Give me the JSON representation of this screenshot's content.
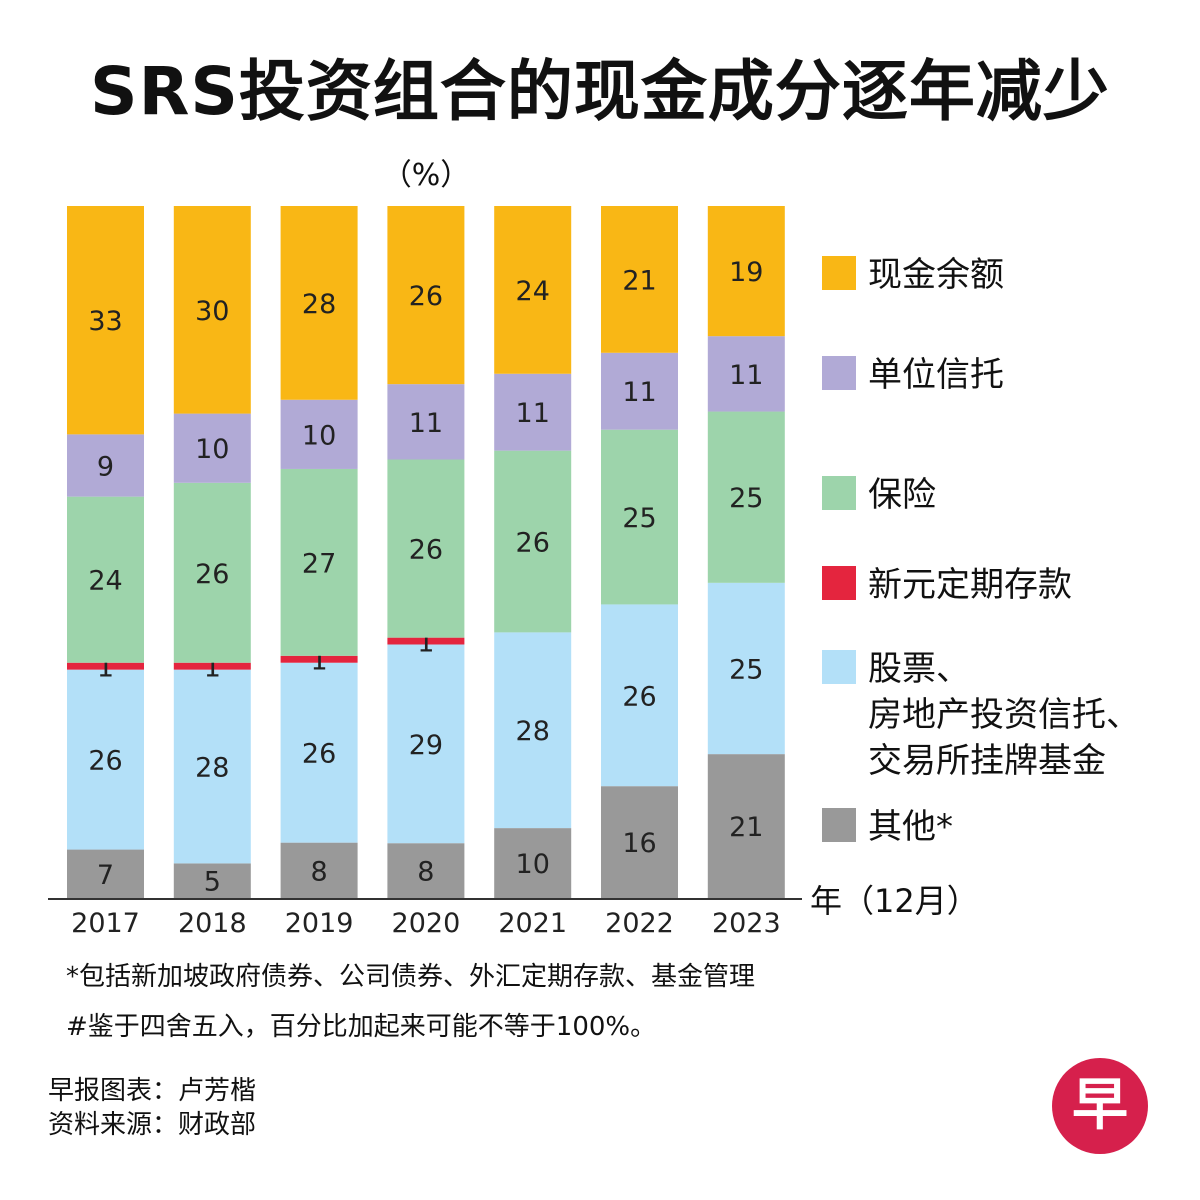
{
  "title": "SRS投资组合的现金成分逐年减少",
  "unit_label": "（%）",
  "chart_data": {
    "type": "bar",
    "stacked": true,
    "categories": [
      "2017",
      "2018",
      "2019",
      "2020",
      "2021",
      "2022",
      "2023"
    ],
    "series": [
      {
        "name": "其他*",
        "color": "#999999",
        "values": [
          7,
          5,
          8,
          8,
          10,
          16,
          21
        ]
      },
      {
        "name": "股票、\n房地产投资信托、\n交易所挂牌基金",
        "color": "#b3e0f8",
        "values": [
          26,
          28,
          26,
          29,
          28,
          26,
          25
        ]
      },
      {
        "name": "新元定期存款",
        "color": "#e4253e",
        "values": [
          1,
          1,
          1,
          1,
          0,
          0,
          0
        ]
      },
      {
        "name": "保险",
        "color": "#9dd4ab",
        "values": [
          24,
          26,
          27,
          26,
          26,
          25,
          25
        ]
      },
      {
        "name": "单位信托",
        "color": "#b1aad6",
        "values": [
          9,
          10,
          10,
          11,
          11,
          11,
          11
        ]
      },
      {
        "name": "现金余额",
        "color": "#f9b715",
        "values": [
          33,
          30,
          28,
          26,
          24,
          21,
          19
        ]
      }
    ],
    "x_unit_label": "年（12月）",
    "grid": false,
    "legend_position": "right"
  },
  "notes": [
    "*包括新加坡政府债券、公司债券、外汇定期存款、基金管理",
    "#鉴于四舍五入，百分比加起来可能不等于100%。"
  ],
  "credits": [
    "早报图表：卢芳楷",
    "资料来源：财政部"
  ],
  "logo": {
    "glyph": "早",
    "color": "#d6204c"
  }
}
